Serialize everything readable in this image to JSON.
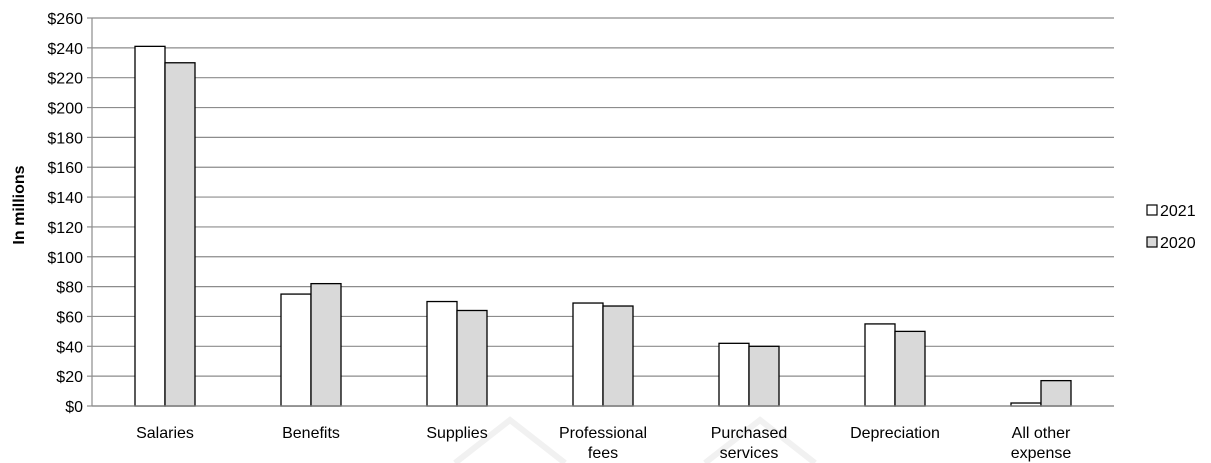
{
  "chart_data": {
    "type": "bar",
    "title": "",
    "xlabel": "",
    "ylabel": "In millions",
    "ylim": [
      0,
      260
    ],
    "ytick_step": 20,
    "ytick_format": "$",
    "grid": true,
    "legend_position": "right",
    "categories": [
      [
        "Salaries"
      ],
      [
        "Benefits"
      ],
      [
        "Supplies"
      ],
      [
        "Professional",
        "fees"
      ],
      [
        "Purchased",
        "services"
      ],
      [
        "Depreciation"
      ],
      [
        "All other",
        "expense"
      ]
    ],
    "series": [
      {
        "name": "2021",
        "color": "#ffffff",
        "values": [
          241,
          75,
          70,
          69,
          42,
          55,
          2
        ]
      },
      {
        "name": "2020",
        "color": "#d9d9d9",
        "values": [
          230,
          82,
          64,
          67,
          40,
          50,
          17
        ]
      }
    ]
  }
}
